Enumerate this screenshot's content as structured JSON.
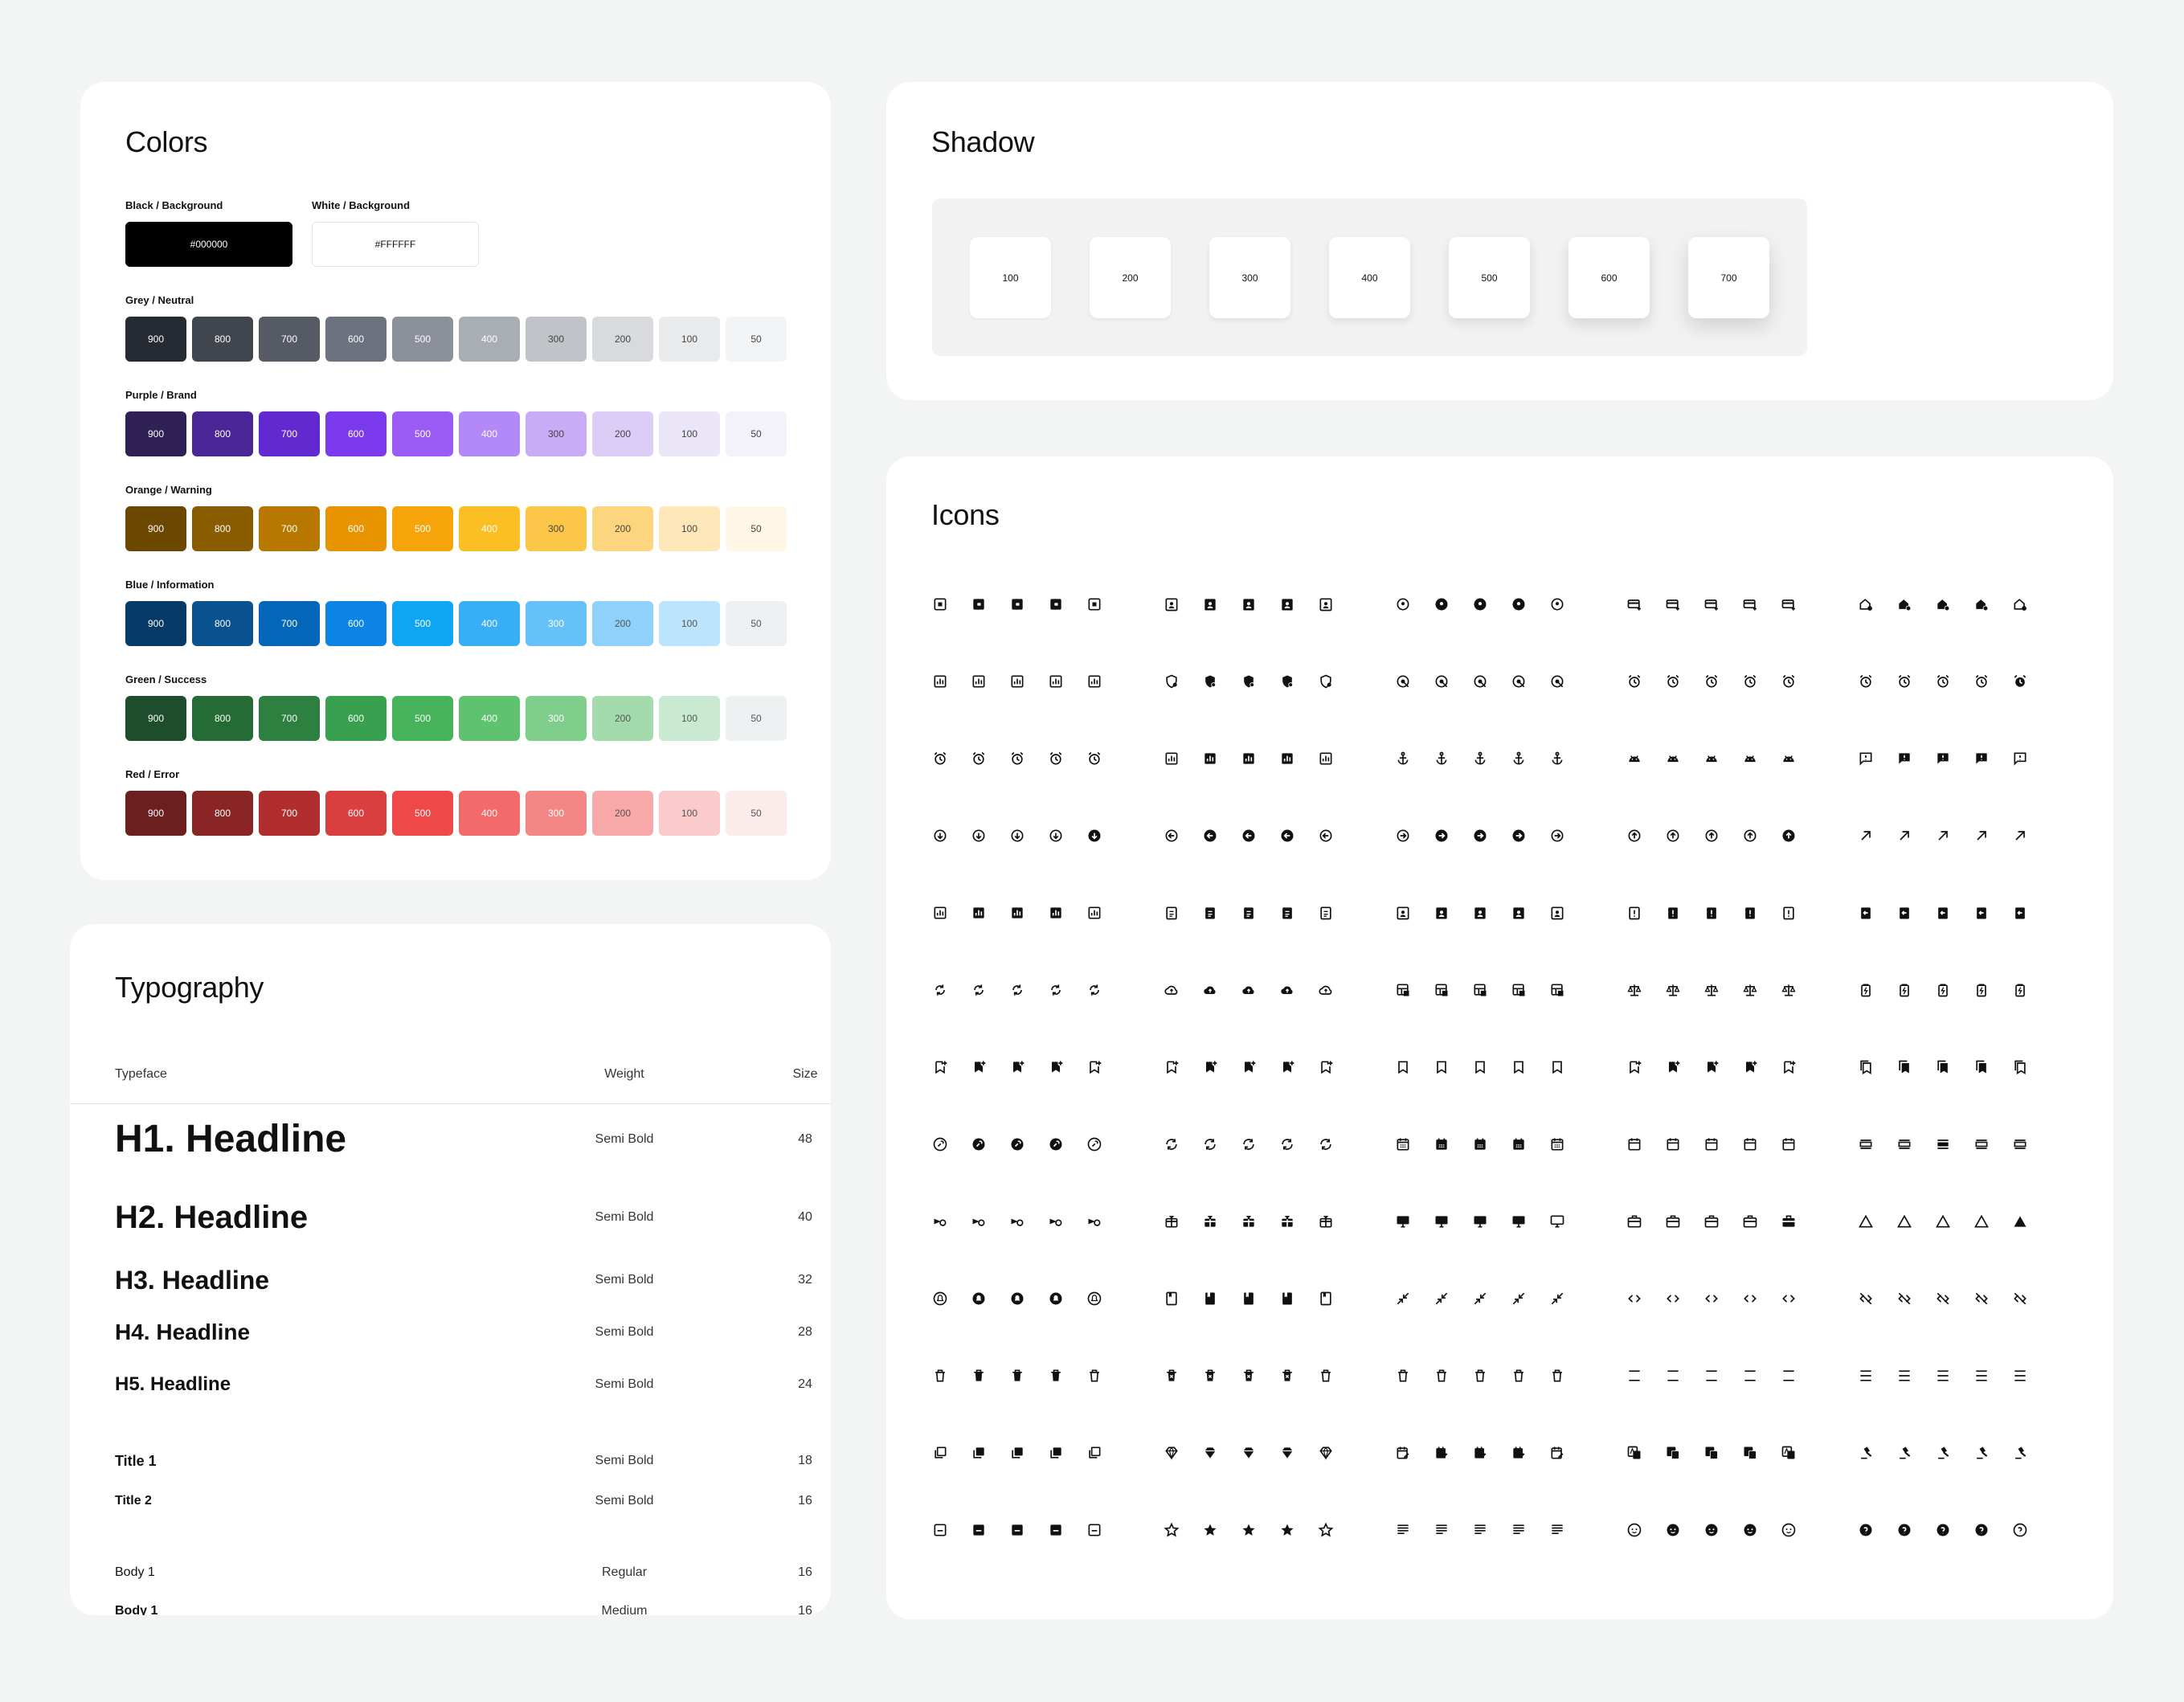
{
  "colors": {
    "title": "Colors",
    "black": {
      "label": "Black / Background",
      "hex": "#000000"
    },
    "white": {
      "label": "White / Background",
      "hex": "#FFFFFF"
    },
    "shades": [
      "900",
      "800",
      "700",
      "600",
      "500",
      "400",
      "300",
      "200",
      "100",
      "50"
    ],
    "groups": [
      {
        "label": "Grey / Neutral",
        "colors": [
          "#262a33",
          "#41454d",
          "#555a64",
          "#6c727e",
          "#8b909b",
          "#a9adb4",
          "#c0c3c8",
          "#d8dadd",
          "#e9eaec",
          "#f3f4f5"
        ]
      },
      {
        "label": "Purple / Brand",
        "colors": [
          "#2f2155",
          "#4a2596",
          "#6229d1",
          "#7c3aed",
          "#9b5cf6",
          "#b388f7",
          "#c9acf6",
          "#dccdf7",
          "#ebe5f8",
          "#f3f1fa"
        ]
      },
      {
        "label": "Orange / Warning",
        "colors": [
          "#6b4700",
          "#8a5c00",
          "#b87800",
          "#e89300",
          "#f5a40a",
          "#fbbf24",
          "#fcc748",
          "#fdd57f",
          "#fee7b8",
          "#fff6e5"
        ]
      },
      {
        "label": "Blue / Information",
        "colors": [
          "#063a66",
          "#08538f",
          "#0366b8",
          "#0b84e6",
          "#0ea5f3",
          "#38aef6",
          "#66c1f9",
          "#8fd1fb",
          "#bde4fd",
          "#edf1f4"
        ]
      },
      {
        "label": "Green / Success",
        "colors": [
          "#1e4d2b",
          "#256b35",
          "#2e8040",
          "#39a04f",
          "#46b35b",
          "#5ec26f",
          "#7fce8b",
          "#a3dbad",
          "#c9ead0",
          "#edf1f2"
        ]
      },
      {
        "label": "Red / Error",
        "colors": [
          "#6b1f1f",
          "#8a2525",
          "#b02e2e",
          "#d93f3f",
          "#ef4848",
          "#f26a6a",
          "#f58686",
          "#f8a8a8",
          "#fbcaca",
          "#fcebeb"
        ]
      }
    ]
  },
  "shadow": {
    "title": "Shadow",
    "levels": [
      "100",
      "200",
      "300",
      "400",
      "500",
      "600",
      "700"
    ]
  },
  "typography": {
    "title": "Typography",
    "headers": {
      "typeface": "Typeface",
      "weight": "Weight",
      "size": "Size"
    },
    "rows": [
      {
        "name": "H1. Headline",
        "weight": "Semi Bold",
        "size": "48"
      },
      {
        "name": "H2. Headline",
        "weight": "Semi Bold",
        "size": "40"
      },
      {
        "name": "H3. Headline",
        "weight": "Semi Bold",
        "size": "32"
      },
      {
        "name": "H4. Headline",
        "weight": "Semi Bold",
        "size": "28"
      },
      {
        "name": "H5. Headline",
        "weight": "Semi Bold",
        "size": "24"
      },
      {
        "name": "Title 1",
        "weight": "Semi Bold",
        "size": "18"
      },
      {
        "name": "Title 2",
        "weight": "Semi Bold",
        "size": "16"
      },
      {
        "name": "Body 1",
        "weight": "Regular",
        "size": "16"
      },
      {
        "name": "Body 1",
        "weight": "Medium",
        "size": "16"
      }
    ]
  },
  "icons": {
    "title": "Icons",
    "grid": [
      [
        "wallet-icon",
        "account-box-icon",
        "account-circle-icon",
        "add-card-icon",
        "add-home-icon"
      ],
      [
        "add-chart-icon",
        "add-moderator-icon",
        "adjust-icon",
        "alarm-icon",
        "alarm-clock-icon"
      ],
      [
        "alarm-off-icon",
        "analytics-icon",
        "anchor-icon",
        "android-icon",
        "announcement-icon"
      ],
      [
        "arrow-circle-down-icon",
        "arrow-circle-left-icon",
        "arrow-circle-right-icon",
        "arrow-circle-up-icon",
        "arrow-outward-icon"
      ],
      [
        "assessment-icon",
        "assignment-icon",
        "assignment-ind-icon",
        "assignment-late-icon",
        "assignment-return-icon"
      ],
      [
        "autorenew-icon",
        "backup-icon",
        "backup-table-icon",
        "balance-icon",
        "battery-icon"
      ],
      [
        "bookmark-add-icon",
        "bookmark-added-icon",
        "bookmark-icon",
        "bookmark-remove-icon",
        "bookmarks-icon"
      ],
      [
        "build-circle-icon",
        "cached-icon",
        "calendar-month-icon",
        "calendar-today-icon",
        "calendar-view-day-icon"
      ],
      [
        "camera-indoor-icon",
        "card-giftcard-icon",
        "desktop-icon",
        "work-icon",
        "change-history-icon"
      ],
      [
        "circle-notifications-icon",
        "class-icon",
        "close-fullscreen-icon",
        "code-icon",
        "code-off-icon"
      ],
      [
        "delete-icon",
        "delete-forever-icon",
        "delete-outline-icon",
        "density-large-icon",
        "density-medium-icon"
      ],
      [
        "dynamic-feed-icon",
        "diamond-icon",
        "edit-calendar-icon",
        "g-translate-icon",
        "gavel-icon"
      ],
      [
        "gif-box-icon",
        "star-icon",
        "article-icon",
        "face-icon",
        "help-icon"
      ]
    ]
  }
}
